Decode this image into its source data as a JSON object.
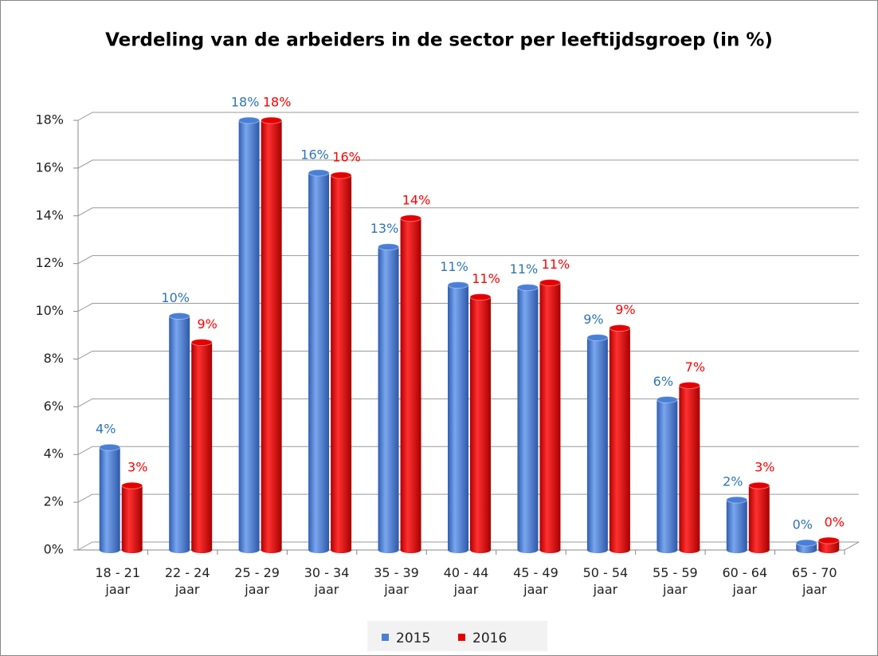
{
  "chart_data": {
    "type": "bar",
    "title": "Verdeling van de arbeiders in de sector per leeftijdsgroep (in %)",
    "categories": [
      "18 - 21 jaar",
      "22 - 24 jaar",
      "25 - 29 jaar",
      "30 - 34 jaar",
      "35 - 39 jaar",
      "40 - 44 jaar",
      "45 - 49 jaar",
      "50 - 54 jaar",
      "55 - 59 jaar",
      "60 - 64 jaar",
      "65 - 70 jaar"
    ],
    "series": [
      {
        "name": "2015",
        "color": "#4a7fd6",
        "label_color": "#2e75b6",
        "values": [
          4.3,
          9.8,
          18.0,
          15.8,
          12.7,
          11.1,
          11.0,
          8.9,
          6.3,
          2.1,
          0.3
        ],
        "value_labels": [
          "4%",
          "10%",
          "18%",
          "16%",
          "13%",
          "11%",
          "11%",
          "9%",
          "6%",
          "2%",
          "0%"
        ]
      },
      {
        "name": "2016",
        "color": "#e60000",
        "label_color": "#ff0000",
        "values": [
          2.7,
          8.7,
          18.0,
          15.7,
          13.9,
          10.6,
          11.2,
          9.3,
          6.9,
          2.7,
          0.4
        ],
        "value_labels": [
          "3%",
          "9%",
          "18%",
          "16%",
          "14%",
          "11%",
          "11%",
          "9%",
          "7%",
          "3%",
          "0%"
        ]
      }
    ],
    "ylim": [
      0,
      18
    ],
    "yticks": [
      {
        "value": 0,
        "label": "0%"
      },
      {
        "value": 2,
        "label": "2%"
      },
      {
        "value": 4,
        "label": "4%"
      },
      {
        "value": 6,
        "label": "6%"
      },
      {
        "value": 8,
        "label": "8%"
      },
      {
        "value": 10,
        "label": "10%"
      },
      {
        "value": 12,
        "label": "12%"
      },
      {
        "value": 14,
        "label": "14%"
      },
      {
        "value": 16,
        "label": "16%"
      },
      {
        "value": 18,
        "label": "18%"
      }
    ],
    "grid": true,
    "legend": "bottom"
  }
}
